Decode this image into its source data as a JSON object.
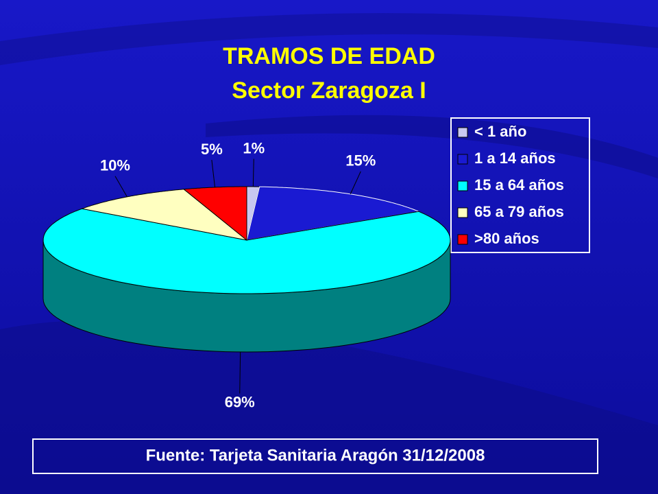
{
  "chart_data": {
    "type": "pie3d",
    "title": "TRAMOS DE EDAD",
    "subtitle": "Sector Zaragoza I",
    "categories": [
      "< 1 año",
      "1 a 14 años",
      "15 a 64 años",
      "65 a 79 años",
      ">80 años"
    ],
    "values": [
      1,
      15,
      69,
      10,
      5
    ],
    "value_labels": [
      "1%",
      "15%",
      "69%",
      "10%",
      "5%"
    ],
    "colors": [
      "#c8c8f0",
      "#1a1ad2",
      "#00ffff",
      "#ffffc0",
      "#ff0000"
    ],
    "legend": "right",
    "source": "Fuente: Tarjeta Sanitaria Aragón 31/12/2008"
  }
}
